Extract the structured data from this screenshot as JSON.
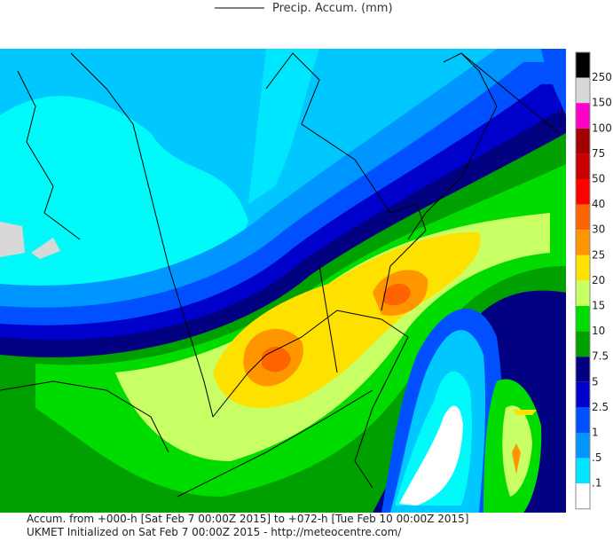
{
  "legend": {
    "title": "Precip. Accum. (mm)"
  },
  "colorbar": {
    "labels": [
      "250",
      "150",
      "100",
      "75",
      "50",
      "40",
      "30",
      "25",
      "20",
      "15",
      "10",
      "7.5",
      "5",
      "2.5",
      "1",
      ".5",
      ".1"
    ]
  },
  "footer": {
    "lines": [
      "Accum. from +000-h [Sat Feb 7 00:00Z 2015] to +072-h [Tue Feb 10 00:00Z 2015]",
      "UKMET Initialized on Sat Feb 7 00:00Z 2015 - http://meteocentre.com/"
    ]
  }
}
